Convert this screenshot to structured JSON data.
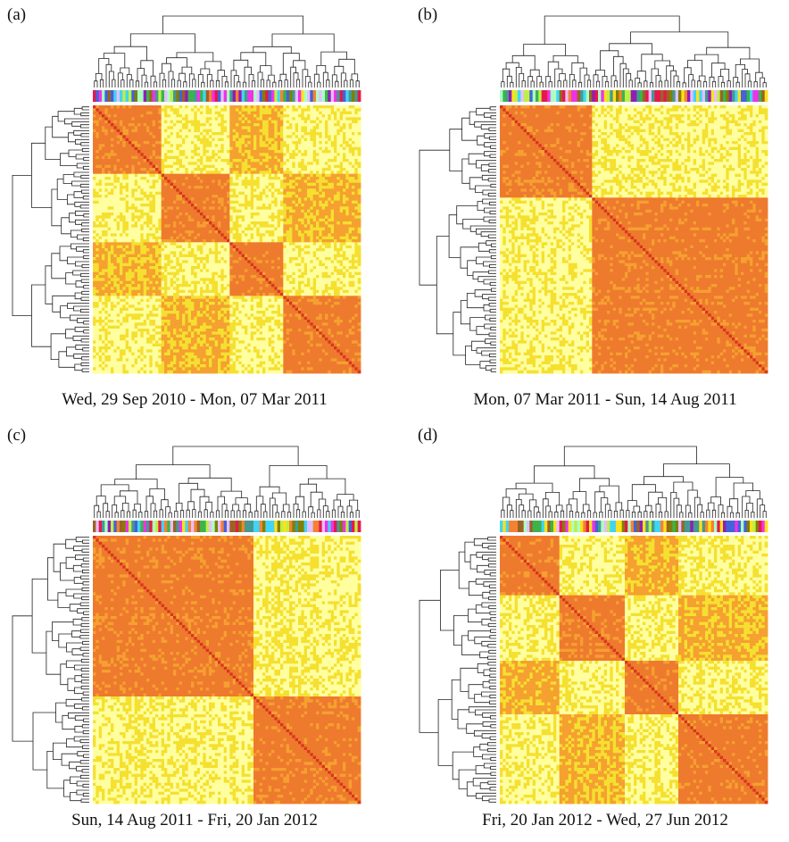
{
  "chart_data": [
    {
      "type": "heatmap",
      "panel_label": "(a)",
      "title": "Wed, 29 Sep 2010 - Mon, 07 Mar 2011",
      "xlabel": "",
      "ylabel": "",
      "n_items": 90,
      "block_fractions": [
        0.25,
        0.25,
        0.2,
        0.3
      ],
      "dendrograms": "rows and columns",
      "color_bar": "top",
      "palette": [
        "#ffffa0",
        "#f5e030",
        "#f5a030",
        "#ee7a2e",
        "#d9361e"
      ]
    },
    {
      "type": "heatmap",
      "panel_label": "(b)",
      "title": "Mon, 07 Mar 2011 - Sun, 14 Aug 2011",
      "xlabel": "",
      "ylabel": "",
      "n_items": 90,
      "block_fractions": [
        0.34,
        0.66
      ],
      "dendrograms": "rows and columns",
      "color_bar": "top",
      "palette": [
        "#ffffa0",
        "#f5e030",
        "#f5a030",
        "#ee7a2e",
        "#d9361e"
      ]
    },
    {
      "type": "heatmap",
      "panel_label": "(c)",
      "title": "Sun, 14 Aug 2011 - Fri, 20 Jan 2012",
      "xlabel": "",
      "ylabel": "",
      "n_items": 90,
      "block_fractions": [
        0.6,
        0.4
      ],
      "dendrograms": "rows and columns",
      "color_bar": "top",
      "palette": [
        "#ffffa0",
        "#f5e030",
        "#f5a030",
        "#ee7a2e",
        "#d9361e"
      ]
    },
    {
      "type": "heatmap",
      "panel_label": "(d)",
      "title": "Fri, 20 Jan 2012 - Wed, 27 Jun 2012",
      "xlabel": "",
      "ylabel": "",
      "n_items": 90,
      "block_fractions": [
        0.22,
        0.24,
        0.2,
        0.34
      ],
      "dendrograms": "rows and columns",
      "color_bar": "top",
      "palette": [
        "#ffffa0",
        "#f5e030",
        "#f5a030",
        "#ee7a2e",
        "#d9361e"
      ]
    }
  ],
  "colors": {
    "group_bar": [
      "#3cb44b",
      "#e6194b",
      "#f58231",
      "#4363d8",
      "#911eb4",
      "#42d4f4",
      "#f032e6",
      "#bfef45",
      "#ffe119",
      "#9A6324",
      "#469990",
      "#e6beff",
      "#aaffc3",
      "#808000"
    ],
    "tree_line": "#222222"
  }
}
